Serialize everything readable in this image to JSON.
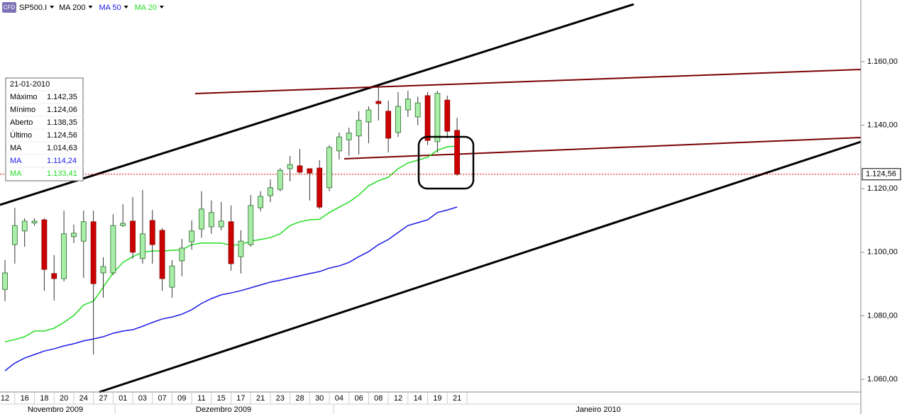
{
  "chart_data": {
    "type": "candlestick",
    "symbol": "SP500.I",
    "badge": "CFD",
    "categories": [
      "12",
      null,
      "16",
      null,
      "18",
      null,
      "20",
      null,
      "24",
      null,
      "27",
      null,
      "01",
      null,
      "03",
      null,
      "07",
      null,
      "09",
      null,
      "11",
      null,
      "15",
      null,
      "17",
      null,
      "21",
      null,
      "23",
      null,
      "28",
      null,
      "30",
      null,
      "04",
      null,
      "06",
      null,
      "08",
      null,
      "12",
      null,
      "14",
      null,
      "19",
      null,
      "21"
    ],
    "months": [
      "Novembro 2009",
      "Dezembro 2009",
      "Janeiro 2010"
    ],
    "open": [
      1088.3,
      1102.4,
      1106.7,
      1109.2,
      1110.2,
      1093.3,
      1091.7,
      1104.9,
      1103.5,
      1109.6,
      1093.5,
      1093.5,
      1108.4,
      1109.8,
      1098.0,
      1110.0,
      1106.9,
      1089.0,
      1097.3,
      1103.3,
      1107.3,
      1108.0,
      1108.0,
      1109.6,
      1098.6,
      1102.4,
      1114.0,
      1117.8,
      1119.8,
      1126.3,
      1127.2,
      1126.3,
      1126.5,
      1120.3,
      1131.9,
      1135.4,
      1136.6,
      1141.0,
      1147.5,
      1144.4,
      1137.7,
      1144.8,
      1142.6,
      1149.3,
      1134.8,
      1147.9,
      1138.35
    ],
    "high": [
      1097.5,
      1114.0,
      1110.7,
      1110.7,
      1110.7,
      1099.1,
      1113.1,
      1108.7,
      1113.1,
      1113.1,
      1098.4,
      1112.0,
      1115.1,
      1117.4,
      1119.6,
      1113.3,
      1107.6,
      1097.5,
      1104.2,
      1110.0,
      1119.2,
      1116.3,
      1115.8,
      1114.7,
      1106.9,
      1118.0,
      1119.2,
      1122.9,
      1126.5,
      1130.3,
      1132.5,
      1126.3,
      1129.0,
      1133.7,
      1137.7,
      1139.2,
      1144.4,
      1145.9,
      1152.2,
      1147.7,
      1150.4,
      1150.8,
      1149.0,
      1150.4,
      1150.8,
      1149.3,
      1142.35
    ],
    "low": [
      1084.6,
      1096.4,
      1101.7,
      1108.4,
      1087.9,
      1084.8,
      1090.8,
      1102.9,
      1091.9,
      1067.8,
      1085.7,
      1092.8,
      1108.0,
      1098.0,
      1096.4,
      1096.4,
      1087.9,
      1085.7,
      1092.4,
      1100.8,
      1104.6,
      1105.8,
      1106.9,
      1094.2,
      1093.3,
      1101.7,
      1112.9,
      1115.8,
      1119.2,
      1122.3,
      1124.7,
      1116.3,
      1113.6,
      1119.2,
      1129.2,
      1130.3,
      1130.8,
      1134.3,
      1141.5,
      1131.4,
      1136.3,
      1142.6,
      1140.0,
      1133.7,
      1131.4,
      1135.9,
      1124.06
    ],
    "close": [
      1093.5,
      1108.4,
      1109.8,
      1109.8,
      1094.6,
      1091.7,
      1105.8,
      1106.0,
      1109.6,
      1090.1,
      1095.5,
      1108.4,
      1109.1,
      1100.0,
      1105.8,
      1102.4,
      1091.7,
      1095.7,
      1101.3,
      1106.7,
      1113.6,
      1112.5,
      1109.8,
      1096.4,
      1103.5,
      1114.7,
      1117.6,
      1120.3,
      1125.8,
      1127.6,
      1125.2,
      1124.9,
      1114.2,
      1133.0,
      1136.3,
      1137.5,
      1141.5,
      1144.8,
      1146.8,
      1135.9,
      1145.9,
      1148.2,
      1147.0,
      1135.2,
      1150.0,
      1138.1,
      1124.56
    ],
    "up_color": "#a8eea8",
    "down_color": "#cc0000",
    "ma_series": [
      {
        "name": "MA 200",
        "color": "#000000"
      },
      {
        "name": "MA 50",
        "color": "#1a1ae6",
        "values": [
          1062.7,
          1065.1,
          1066.7,
          1067.8,
          1068.9,
          1069.6,
          1070.5,
          1071.2,
          1072.1,
          1072.7,
          1073.4,
          1074.5,
          1075.2,
          1075.6,
          1076.7,
          1077.9,
          1079.0,
          1079.6,
          1080.5,
          1081.9,
          1083.9,
          1085.4,
          1086.6,
          1087.2,
          1087.9,
          1088.8,
          1089.7,
          1090.6,
          1091.2,
          1091.9,
          1092.6,
          1093.3,
          1093.9,
          1095.0,
          1095.7,
          1096.8,
          1098.6,
          1100.2,
          1102.4,
          1104.0,
          1106.2,
          1108.4,
          1109.3,
          1110.2,
          1112.5,
          1113.3,
          1114.24
        ]
      },
      {
        "name": "MA 20",
        "color": "#22dd22",
        "values": [
          1071.8,
          1072.5,
          1073.4,
          1075.2,
          1075.2,
          1076.1,
          1077.9,
          1080.1,
          1083.4,
          1084.6,
          1089.0,
          1093.5,
          1096.8,
          1098.6,
          1100.0,
          1100.4,
          1100.4,
          1100.6,
          1100.8,
          1102.4,
          1102.9,
          1102.9,
          1102.9,
          1102.2,
          1102.4,
          1103.5,
          1104.0,
          1104.6,
          1105.8,
          1108.4,
          1109.6,
          1110.2,
          1110.4,
          1112.5,
          1114.2,
          1115.8,
          1118.0,
          1120.9,
          1122.5,
          1123.6,
          1126.3,
          1128.1,
          1129.0,
          1129.9,
          1132.1,
          1133.2,
          1133.41
        ]
      }
    ],
    "ylim": [
      1056,
      1179.4
    ],
    "yticks": [
      {
        "value": 1060,
        "label": "1.060,00"
      },
      {
        "value": 1080,
        "label": "1.080,00"
      },
      {
        "value": 1100,
        "label": "1.100,00"
      },
      {
        "value": 1120,
        "label": "1.120,00"
      },
      {
        "value": 1140,
        "label": "1.140,00"
      },
      {
        "value": 1160,
        "label": "1.160,00"
      }
    ],
    "last_price": {
      "value": 1124.56,
      "label": "1.124,56"
    },
    "info_box": {
      "date": "21-01-2010",
      "rows": [
        [
          "Máximo",
          "1.142,35"
        ],
        [
          "Mínimo",
          "1.124,06"
        ],
        [
          "Aberto",
          "1.138,35"
        ],
        [
          "Último",
          "1.124,56"
        ],
        [
          "MA",
          "1.014,63"
        ],
        [
          "MA",
          "1.114,24"
        ],
        [
          "MA",
          "1.133,41"
        ]
      ]
    }
  }
}
